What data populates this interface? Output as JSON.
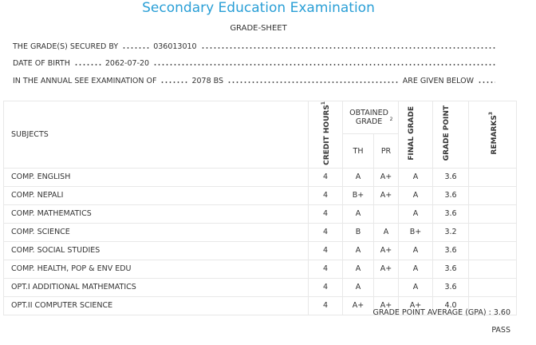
{
  "header": {
    "title": "Secondary Education Examination",
    "subtitle": "GRADE-SHEET"
  },
  "info": [
    {
      "label": "THE GRADE(S) SECURED BY",
      "value": "036013010"
    },
    {
      "label": "DATE OF BIRTH",
      "value": "2062-07-20"
    },
    {
      "label": "IN THE ANNUAL SEE EXAMINATION OF",
      "value": "2078 BS",
      "suffix": "ARE GIVEN BELOW"
    }
  ],
  "table": {
    "columns": {
      "subjects": "SUBJECTS",
      "credit": {
        "text": "CREDIT HOURS",
        "note": "1"
      },
      "obtained": {
        "text": "OBTAINED GRADE",
        "note": "2"
      },
      "th": "TH",
      "pr": "PR",
      "final": "FINAL GRADE",
      "point": "GRADE POINT",
      "remarks": {
        "text": "REMARKS",
        "note": "3"
      }
    },
    "rows": [
      [
        "COMP. ENGLISH",
        "4",
        "A",
        "A+",
        "A",
        "3.6"
      ],
      [
        "COMP. NEPALI",
        "4",
        "B+",
        "A+",
        "A",
        "3.6"
      ],
      [
        "COMP. MATHEMATICS",
        "4",
        "A",
        null,
        "A",
        "3.6"
      ],
      [
        "COMP. SCIENCE",
        "4",
        "B",
        "A",
        "B+",
        "3.2"
      ],
      [
        "COMP. SOCIAL STUDIES",
        "4",
        "A",
        "A+",
        "A",
        "3.6"
      ],
      [
        "COMP. HEALTH, POP & ENV EDU",
        "4",
        "A",
        "A+",
        "A",
        "3.6"
      ],
      [
        "OPT.I ADDITIONAL MATHEMATICS",
        "4",
        "A",
        null,
        "A",
        "3.6"
      ],
      [
        "OPT.II COMPUTER SCIENCE",
        "4",
        "A+",
        "A+",
        "A+",
        "4.0"
      ]
    ]
  },
  "footer": {
    "gpa_label": "GRADE POINT AVERAGE (GPA) :",
    "gpa": "3.60",
    "result": "PASS"
  }
}
